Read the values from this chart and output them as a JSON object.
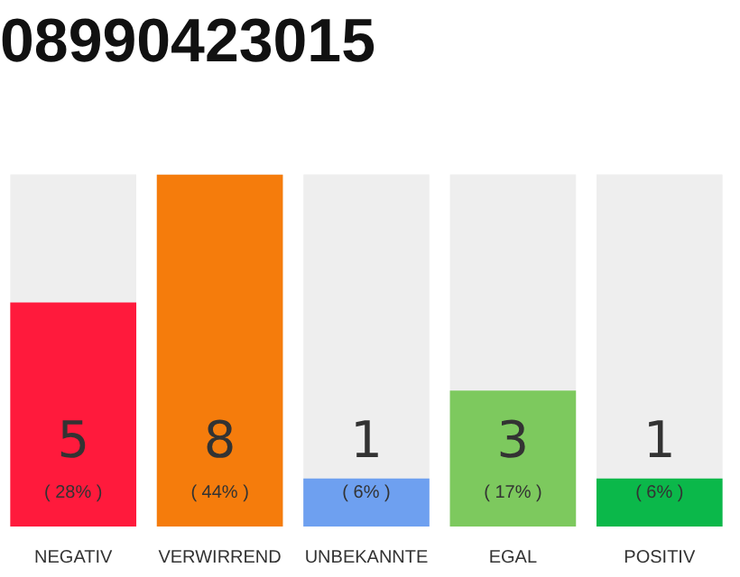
{
  "chart_data": {
    "type": "bar",
    "title": "08990423015",
    "categories": [
      "NEGATIV",
      "VERWIRREND",
      "UNBEKANNTE",
      "EGAL",
      "POSITIV"
    ],
    "values": [
      28,
      44,
      6,
      17,
      6
    ],
    "colors": [
      "#ff1a3c",
      "#f57c0c",
      "#6ea0f0",
      "#7dc95e",
      "#0bb84a"
    ],
    "annotations": [
      "5",
      "8",
      "1",
      "3",
      "1"
    ],
    "value_labels": [
      "( 28% )",
      "( 44% )",
      "( 6% )",
      "( 17% )",
      "( 6% )"
    ],
    "grid": false,
    "legend": false
  }
}
